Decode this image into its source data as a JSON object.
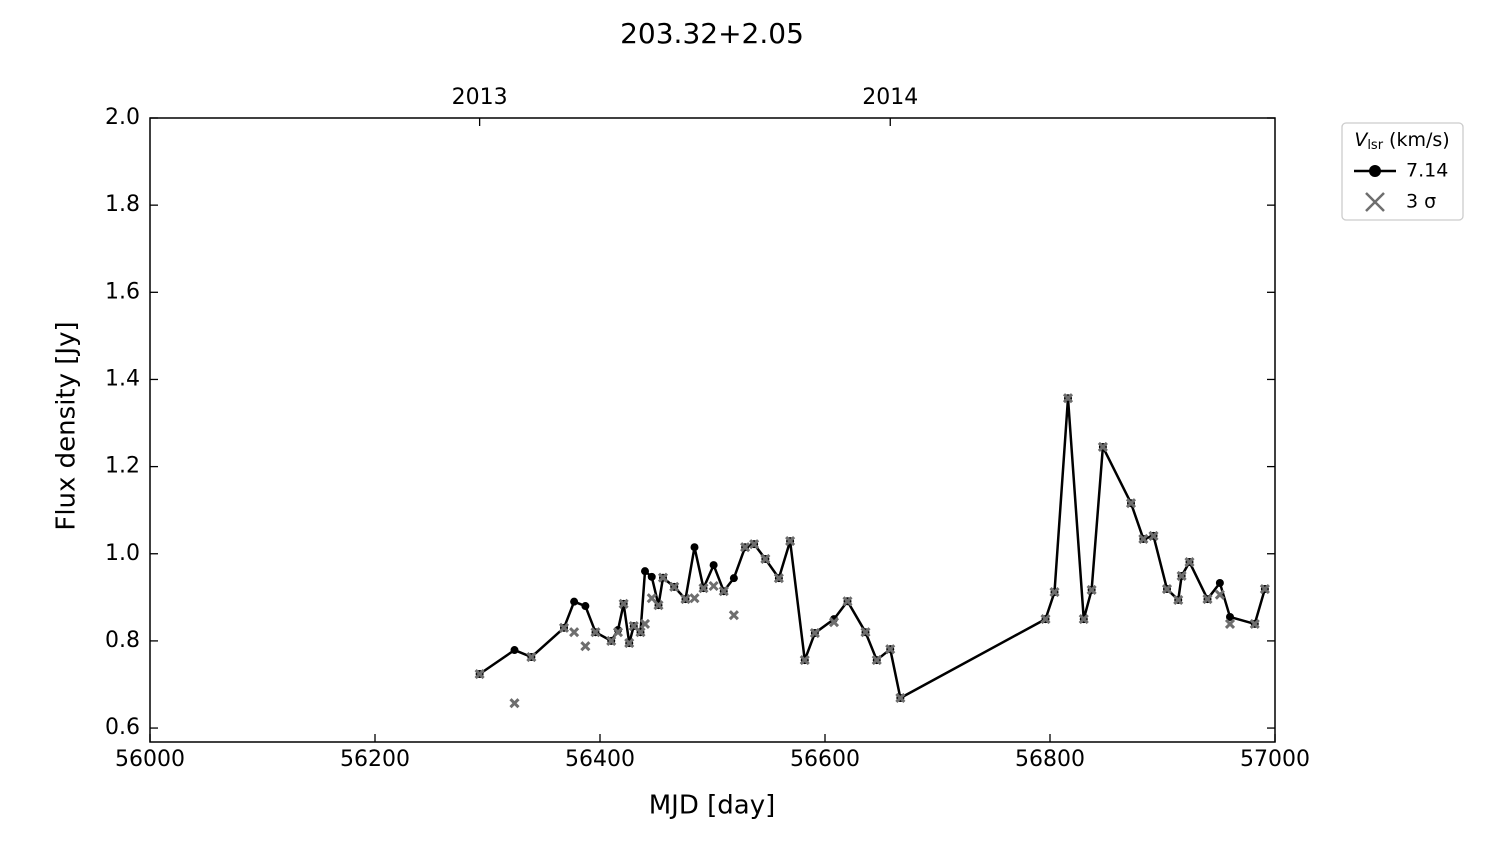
{
  "chart_data": {
    "type": "line",
    "title": "203.32+2.05",
    "x_label": "MJD [day]",
    "y_label": "Flux density [Jy]",
    "legend_title": {
      "symbol": "V",
      "subscript": "lsr",
      "unit": "(km/s)"
    },
    "legend_position": "outside upper right",
    "x": [
      56293,
      56324,
      56339,
      56368,
      56377,
      56387,
      56396,
      56410,
      56416,
      56421,
      56426,
      56430,
      56436,
      56440,
      56446,
      56452,
      56456,
      56466,
      56476,
      56484,
      56492,
      56501,
      56510,
      56519,
      56529,
      56537,
      56547,
      56559,
      56569,
      56582,
      56591,
      56608,
      56620,
      56636,
      56646,
      56658,
      56667,
      56796,
      56804,
      56816,
      56830,
      56837,
      56847,
      56872,
      56883,
      56892,
      56904,
      56914,
      56917,
      56924,
      56940,
      56951,
      56960,
      56982,
      56991
    ],
    "series": [
      {
        "name": "7.14",
        "color": "#000000",
        "marker": "circle",
        "line": true,
        "values": [
          0.724,
          0.779,
          0.763,
          0.83,
          0.89,
          0.88,
          0.82,
          0.8,
          0.825,
          0.885,
          0.795,
          0.834,
          0.82,
          0.96,
          0.947,
          0.882,
          0.945,
          0.924,
          0.896,
          1.015,
          0.921,
          0.974,
          0.914,
          0.944,
          1.015,
          1.022,
          0.988,
          0.944,
          1.029,
          0.756,
          0.818,
          0.85,
          0.891,
          0.82,
          0.756,
          0.781,
          0.669,
          0.85,
          0.912,
          1.357,
          0.85,
          0.917,
          1.245,
          1.116,
          1.034,
          1.041,
          0.919,
          0.894,
          0.949,
          0.981,
          0.896,
          0.933,
          0.855,
          0.839,
          0.919
        ]
      },
      {
        "name": "3 σ",
        "color": "#6e6e6e",
        "marker": "x",
        "line": false,
        "values": [
          0.724,
          0.657,
          0.763,
          0.83,
          0.82,
          0.788,
          0.82,
          0.8,
          0.82,
          0.885,
          0.795,
          0.834,
          0.82,
          0.839,
          0.898,
          0.882,
          0.945,
          0.924,
          0.896,
          0.898,
          0.921,
          0.926,
          0.914,
          0.859,
          1.015,
          1.022,
          0.988,
          0.944,
          1.029,
          0.756,
          0.818,
          0.843,
          0.891,
          0.82,
          0.756,
          0.781,
          0.669,
          0.85,
          0.912,
          1.357,
          0.85,
          0.917,
          1.245,
          1.116,
          1.034,
          1.041,
          0.919,
          0.894,
          0.949,
          0.981,
          0.896,
          0.906,
          0.839,
          0.839,
          0.919
        ]
      }
    ],
    "xlim": [
      56000,
      57000
    ],
    "xticks": [
      56000,
      56200,
      56400,
      56600,
      56800,
      57000
    ],
    "x2ticks": [
      {
        "value": 56293,
        "label": "2013"
      },
      {
        "value": 56658,
        "label": "2014"
      }
    ],
    "ylim": [
      0.568,
      2.0
    ],
    "yticks": [
      0.6,
      0.8,
      {
        "value": 1.0,
        "label": "1.0"
      },
      1.2,
      1.4,
      1.6,
      1.8,
      {
        "value": 2.0,
        "label": "2.0"
      }
    ],
    "grid": false
  }
}
